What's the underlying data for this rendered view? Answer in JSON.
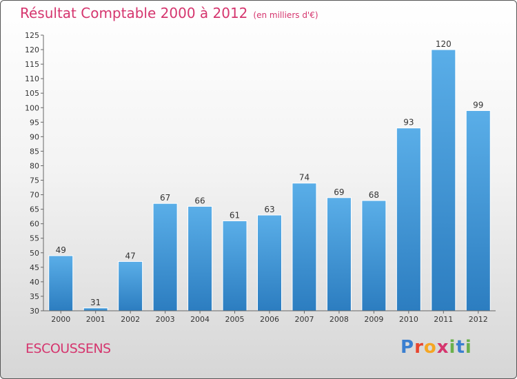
{
  "header": {
    "title": "Résultat Comptable 2000 à 2012",
    "subtitle": "(en milliers d'€)"
  },
  "footer": {
    "commune": "ESCOUSSENS",
    "logo_letters": [
      "P",
      "r",
      "o",
      "x",
      "i",
      "t",
      "i"
    ],
    "logo_colors": [
      "#3a7fd0",
      "#e8452e",
      "#f5a623",
      "#d5356e",
      "#6ab04c",
      "#3a7fd0",
      "#6ab04c"
    ]
  },
  "colors": {
    "bar_top": "#5aaee8",
    "bar_bottom": "#2c7dc0",
    "accent": "#d5356e"
  },
  "chart_data": {
    "type": "bar",
    "categories": [
      "2000",
      "2001",
      "2002",
      "2003",
      "2004",
      "2005",
      "2006",
      "2007",
      "2008",
      "2009",
      "2010",
      "2011",
      "2012"
    ],
    "values": [
      49,
      31,
      47,
      67,
      66,
      61,
      63,
      74,
      69,
      68,
      93,
      120,
      99
    ],
    "ylim": [
      30,
      125
    ],
    "yticks": [
      30,
      35,
      40,
      45,
      50,
      55,
      60,
      65,
      70,
      75,
      80,
      85,
      90,
      95,
      100,
      105,
      110,
      115,
      120,
      125
    ],
    "grid": false,
    "legend": "none"
  }
}
